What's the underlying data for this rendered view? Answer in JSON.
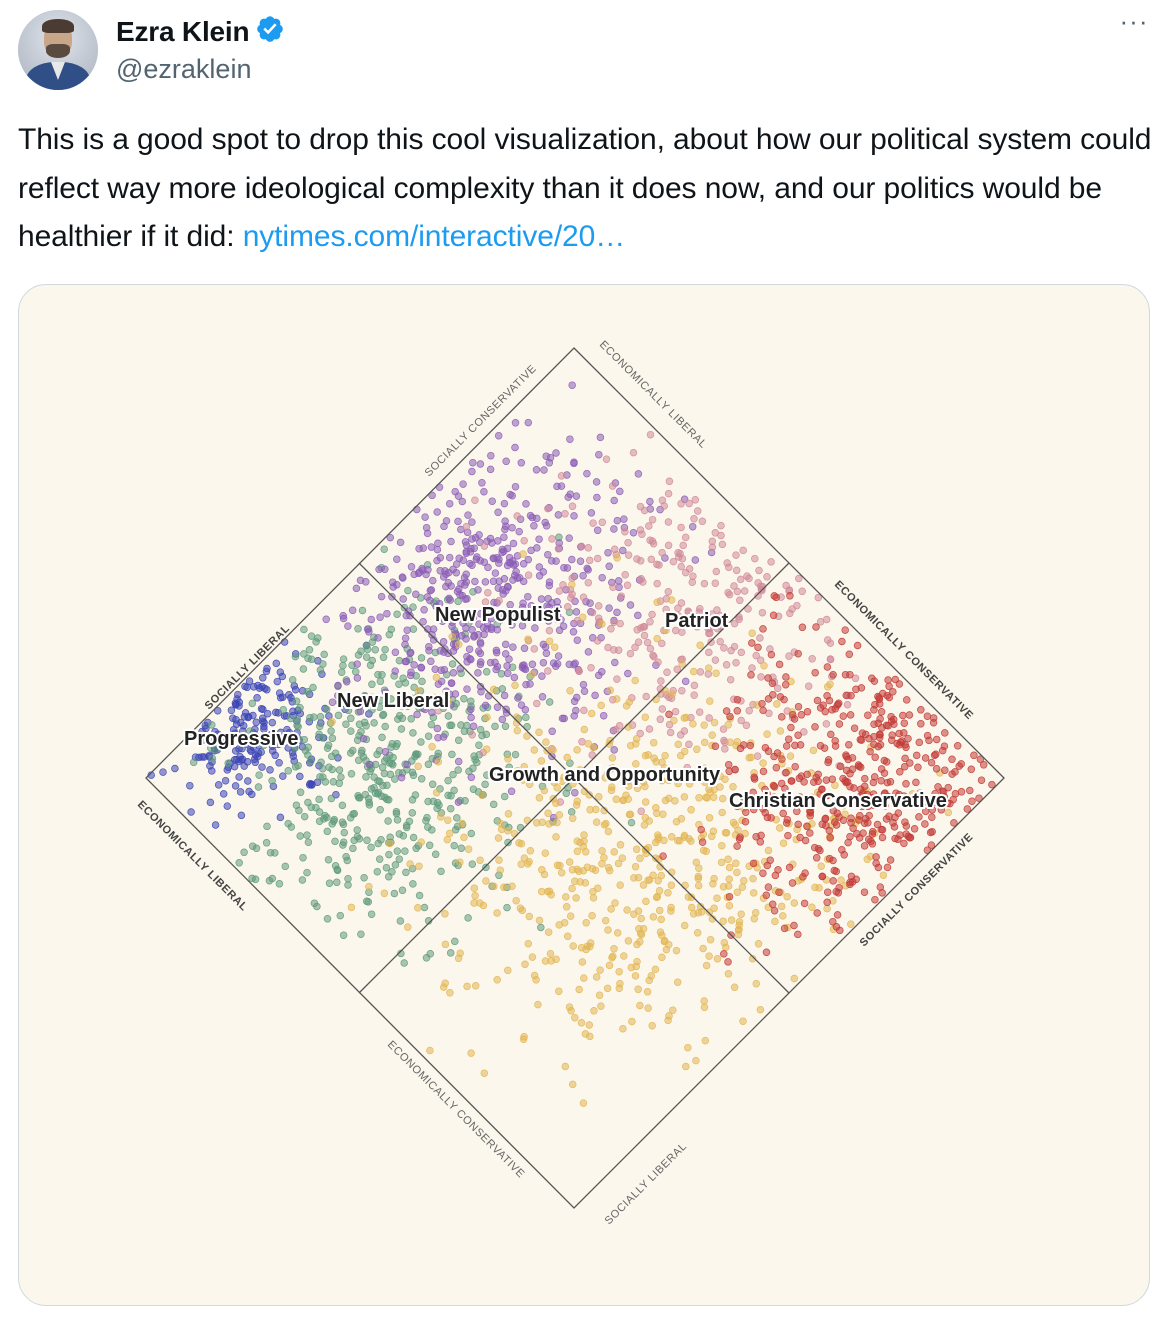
{
  "author": {
    "name": "Ezra Klein",
    "handle": "@ezraklein",
    "verified": true,
    "verified_color": "#1d9bf0"
  },
  "more_label": "···",
  "tweet": {
    "text": "This is a good spot to drop this cool visualization, about how our political system could reflect way more ideological complexity than it does now, and our politics would be healthier if it did: ",
    "link_text": "nytimes.com/interactive/20…"
  },
  "chart_data": {
    "type": "scatter",
    "axes": {
      "left_upper": "SOCIALLY LIBERAL",
      "left_lower": "ECONOMICALLY LIBERAL",
      "top_left": "SOCIALLY CONSERVATIVE",
      "top_right": "ECONOMICALLY LIBERAL",
      "right_upper": "ECONOMICALLY CONSERVATIVE",
      "right_lower": "SOCIALLY CONSERVATIVE",
      "bottom_left": "ECONOMICALLY CONSERVATIVE",
      "bottom_right": "SOCIALLY LIBERAL"
    },
    "groups": [
      {
        "name": "Progressive",
        "color": "#3b45b5"
      },
      {
        "name": "New Liberal",
        "color": "#5f9a7c"
      },
      {
        "name": "New Populist",
        "color": "#8a5cb6"
      },
      {
        "name": "Patriot",
        "color": "#d08a99"
      },
      {
        "name": "Growth and Opportunity",
        "color": "#e2b653"
      },
      {
        "name": "Christian Conservative",
        "color": "#c23a36"
      }
    ]
  }
}
